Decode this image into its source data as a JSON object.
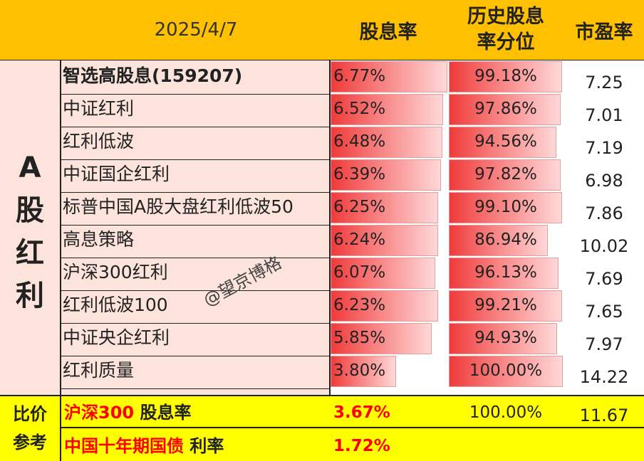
{
  "header": {
    "date": "2025/4/7",
    "col_yield": "股息率",
    "col_percentile_line1": "历史股息",
    "col_percentile_line2": "率分位",
    "col_pe": "市盈率"
  },
  "group_label": [
    "A",
    "股",
    "红",
    "利"
  ],
  "rows": [
    {
      "name": "智选高股息(159207)",
      "yield": "6.77%",
      "yield_level": 6.77,
      "percentile": "99.18%",
      "percentile_level": 99.18,
      "pe": "7.25"
    },
    {
      "name": "中证红利",
      "yield": "6.52%",
      "yield_level": 6.52,
      "percentile": "97.86%",
      "percentile_level": 97.86,
      "pe": "7.01"
    },
    {
      "name": "红利低波",
      "yield": "6.48%",
      "yield_level": 6.48,
      "percentile": "94.56%",
      "percentile_level": 94.56,
      "pe": "7.19"
    },
    {
      "name": "中证国企红利",
      "yield": "6.39%",
      "yield_level": 6.39,
      "percentile": "97.82%",
      "percentile_level": 97.82,
      "pe": "6.98"
    },
    {
      "name": "标普中国A股大盘红利低波50",
      "yield": "6.25%",
      "yield_level": 6.25,
      "percentile": "99.10%",
      "percentile_level": 99.1,
      "pe": "7.86"
    },
    {
      "name": "高息策略",
      "yield": "6.24%",
      "yield_level": 6.24,
      "percentile": "86.94%",
      "percentile_level": 86.94,
      "pe": "10.02"
    },
    {
      "name": "沪深300红利",
      "yield": "6.07%",
      "yield_level": 6.07,
      "percentile": "96.13%",
      "percentile_level": 96.13,
      "pe": "7.69"
    },
    {
      "name": "红利低波100",
      "yield": "6.23%",
      "yield_level": 6.23,
      "percentile": "99.21%",
      "percentile_level": 99.21,
      "pe": "7.65"
    },
    {
      "name": "中证央企红利",
      "yield": "5.85%",
      "yield_level": 5.85,
      "percentile": "94.93%",
      "percentile_level": 94.93,
      "pe": "7.97"
    },
    {
      "name": "红利质量",
      "yield": "3.80%",
      "yield_level": 3.8,
      "percentile": "100.00%",
      "percentile_level": 100.0,
      "pe": "14.22"
    }
  ],
  "compare": {
    "label_line1": "比价",
    "label_line2": "参考",
    "row1": {
      "name_red": "沪深300",
      "name_black": " 股息率",
      "yield": "3.67%",
      "percentile": "100.00%",
      "pe": "11.67"
    },
    "row2": {
      "name_red": "中国十年期国债",
      "name_black": " 利率",
      "yield": "1.72%"
    }
  },
  "watermark": "@望京博格",
  "colors": {
    "header_bg": "#ffc000",
    "pink_bg": "#fce4dc",
    "yellow_bg": "#ffff00",
    "bar_red": "#f03a3a",
    "accent_red": "#ff0000"
  }
}
